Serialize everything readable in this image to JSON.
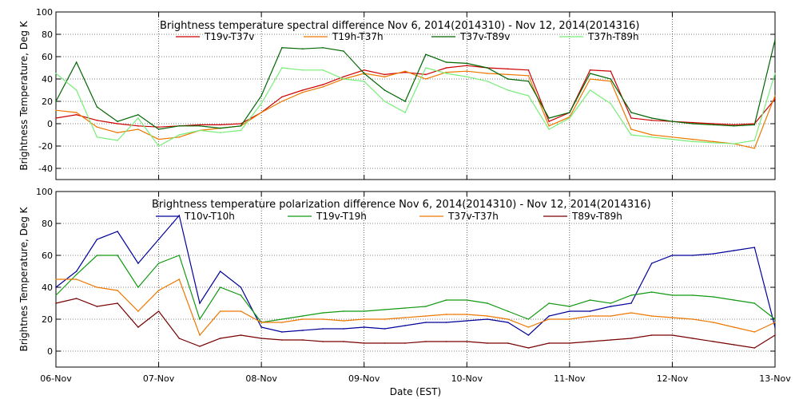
{
  "colors": {
    "red": "#cc0000",
    "orange": "#ee7700",
    "darkgreen": "#006600",
    "lightgreen": "#77ee77",
    "blue": "#000099",
    "green": "#119911",
    "darkred": "#770000",
    "grid": "#000000"
  },
  "chart_data": [
    {
      "type": "line",
      "title": "Brightness temperature spectral difference    Nov  6, 2014(2014310) - Nov 12, 2014(2014316)",
      "xlabel": "",
      "ylabel": "Brightness Temperature, Deg K",
      "xlim": [
        0,
        7
      ],
      "ylim": [
        -50,
        100
      ],
      "yticks": [
        -40,
        -20,
        0,
        20,
        40,
        60,
        80,
        100
      ],
      "grid": true,
      "legend": "top",
      "x": [
        0,
        0.2,
        0.4,
        0.6,
        0.8,
        1.0,
        1.2,
        1.4,
        1.6,
        1.8,
        2.0,
        2.2,
        2.4,
        2.6,
        2.8,
        3.0,
        3.2,
        3.4,
        3.6,
        3.8,
        4.0,
        4.2,
        4.4,
        4.6,
        4.8,
        5.0,
        5.2,
        5.4,
        5.6,
        5.8,
        6.0,
        6.2,
        6.4,
        6.6,
        6.8,
        7.0
      ],
      "series": [
        {
          "name": "T19v-T37v",
          "color_key": "red",
          "values": [
            5,
            8,
            3,
            0,
            -2,
            -3,
            -2,
            -1,
            -1,
            0,
            10,
            24,
            30,
            35,
            42,
            48,
            44,
            46,
            44,
            50,
            52,
            50,
            49,
            48,
            2,
            10,
            48,
            47,
            5,
            3,
            2,
            1,
            0,
            -1,
            0,
            22
          ]
        },
        {
          "name": "T19h-T37h",
          "color_key": "orange",
          "values": [
            12,
            10,
            -3,
            -8,
            -5,
            -14,
            -12,
            -6,
            -4,
            -2,
            10,
            20,
            28,
            33,
            40,
            45,
            42,
            47,
            40,
            46,
            47,
            45,
            44,
            43,
            -2,
            6,
            40,
            38,
            -5,
            -10,
            -12,
            -14,
            -16,
            -18,
            -22,
            25
          ]
        },
        {
          "name": "T37v-T89v",
          "color_key": "darkgreen",
          "values": [
            20,
            55,
            15,
            2,
            8,
            -5,
            -2,
            -2,
            -4,
            -2,
            25,
            68,
            67,
            68,
            65,
            45,
            30,
            20,
            62,
            55,
            54,
            50,
            40,
            38,
            5,
            10,
            45,
            40,
            10,
            5,
            2,
            0,
            -1,
            -2,
            -1,
            75
          ]
        },
        {
          "name": "T37h-T89h",
          "color_key": "lightgreen",
          "values": [
            45,
            30,
            -12,
            -15,
            5,
            -20,
            -10,
            -6,
            -8,
            -6,
            18,
            50,
            48,
            48,
            40,
            38,
            20,
            10,
            50,
            45,
            42,
            38,
            30,
            25,
            -5,
            5,
            30,
            18,
            -10,
            -12,
            -14,
            -16,
            -17,
            -18,
            -15,
            45
          ]
        }
      ]
    },
    {
      "type": "line",
      "title": "Brightness temperature polarization difference    Nov  6, 2014(2014310) - Nov 12, 2014(2014316)",
      "xlabel": "Date (EST)",
      "ylabel": "Brightnes Temperature, Deg K",
      "xlim": [
        0,
        7
      ],
      "ylim": [
        -10,
        100
      ],
      "yticks": [
        0,
        20,
        40,
        60,
        80,
        100
      ],
      "xticklabels": [
        "06-Nov",
        "07-Nov",
        "08-Nov",
        "09-Nov",
        "10-Nov",
        "11-Nov",
        "12-Nov",
        "13-Nov"
      ],
      "grid": true,
      "legend": "top",
      "x": [
        0,
        0.2,
        0.4,
        0.6,
        0.8,
        1.0,
        1.2,
        1.4,
        1.6,
        1.8,
        2.0,
        2.2,
        2.4,
        2.6,
        2.8,
        3.0,
        3.2,
        3.4,
        3.6,
        3.8,
        4.0,
        4.2,
        4.4,
        4.6,
        4.8,
        5.0,
        5.2,
        5.4,
        5.6,
        5.8,
        6.0,
        6.2,
        6.4,
        6.6,
        6.8,
        7.0
      ],
      "series": [
        {
          "name": "T10v-T10h",
          "color_key": "blue",
          "values": [
            40,
            50,
            70,
            75,
            55,
            70,
            85,
            30,
            50,
            40,
            15,
            12,
            13,
            14,
            14,
            15,
            14,
            16,
            18,
            18,
            19,
            20,
            18,
            10,
            22,
            25,
            25,
            28,
            30,
            55,
            60,
            60,
            61,
            63,
            65,
            15
          ]
        },
        {
          "name": "T19v-T19h",
          "color_key": "green",
          "values": [
            35,
            48,
            60,
            60,
            40,
            55,
            60,
            20,
            40,
            35,
            18,
            20,
            22,
            24,
            25,
            25,
            26,
            27,
            28,
            32,
            32,
            30,
            25,
            20,
            30,
            28,
            32,
            30,
            35,
            37,
            35,
            35,
            34,
            32,
            30,
            20
          ]
        },
        {
          "name": "T37v-T37h",
          "color_key": "orange",
          "values": [
            45,
            45,
            40,
            38,
            25,
            38,
            45,
            10,
            25,
            25,
            18,
            18,
            20,
            20,
            19,
            20,
            20,
            21,
            22,
            23,
            23,
            22,
            20,
            15,
            20,
            20,
            22,
            22,
            24,
            22,
            21,
            20,
            18,
            15,
            12,
            18
          ]
        },
        {
          "name": "T89v-T89h",
          "color_key": "darkred",
          "values": [
            30,
            33,
            28,
            30,
            15,
            25,
            8,
            3,
            8,
            10,
            8,
            7,
            7,
            6,
            6,
            5,
            5,
            5,
            6,
            6,
            6,
            5,
            5,
            2,
            5,
            5,
            6,
            7,
            8,
            10,
            10,
            8,
            6,
            4,
            2,
            10
          ]
        }
      ]
    }
  ]
}
